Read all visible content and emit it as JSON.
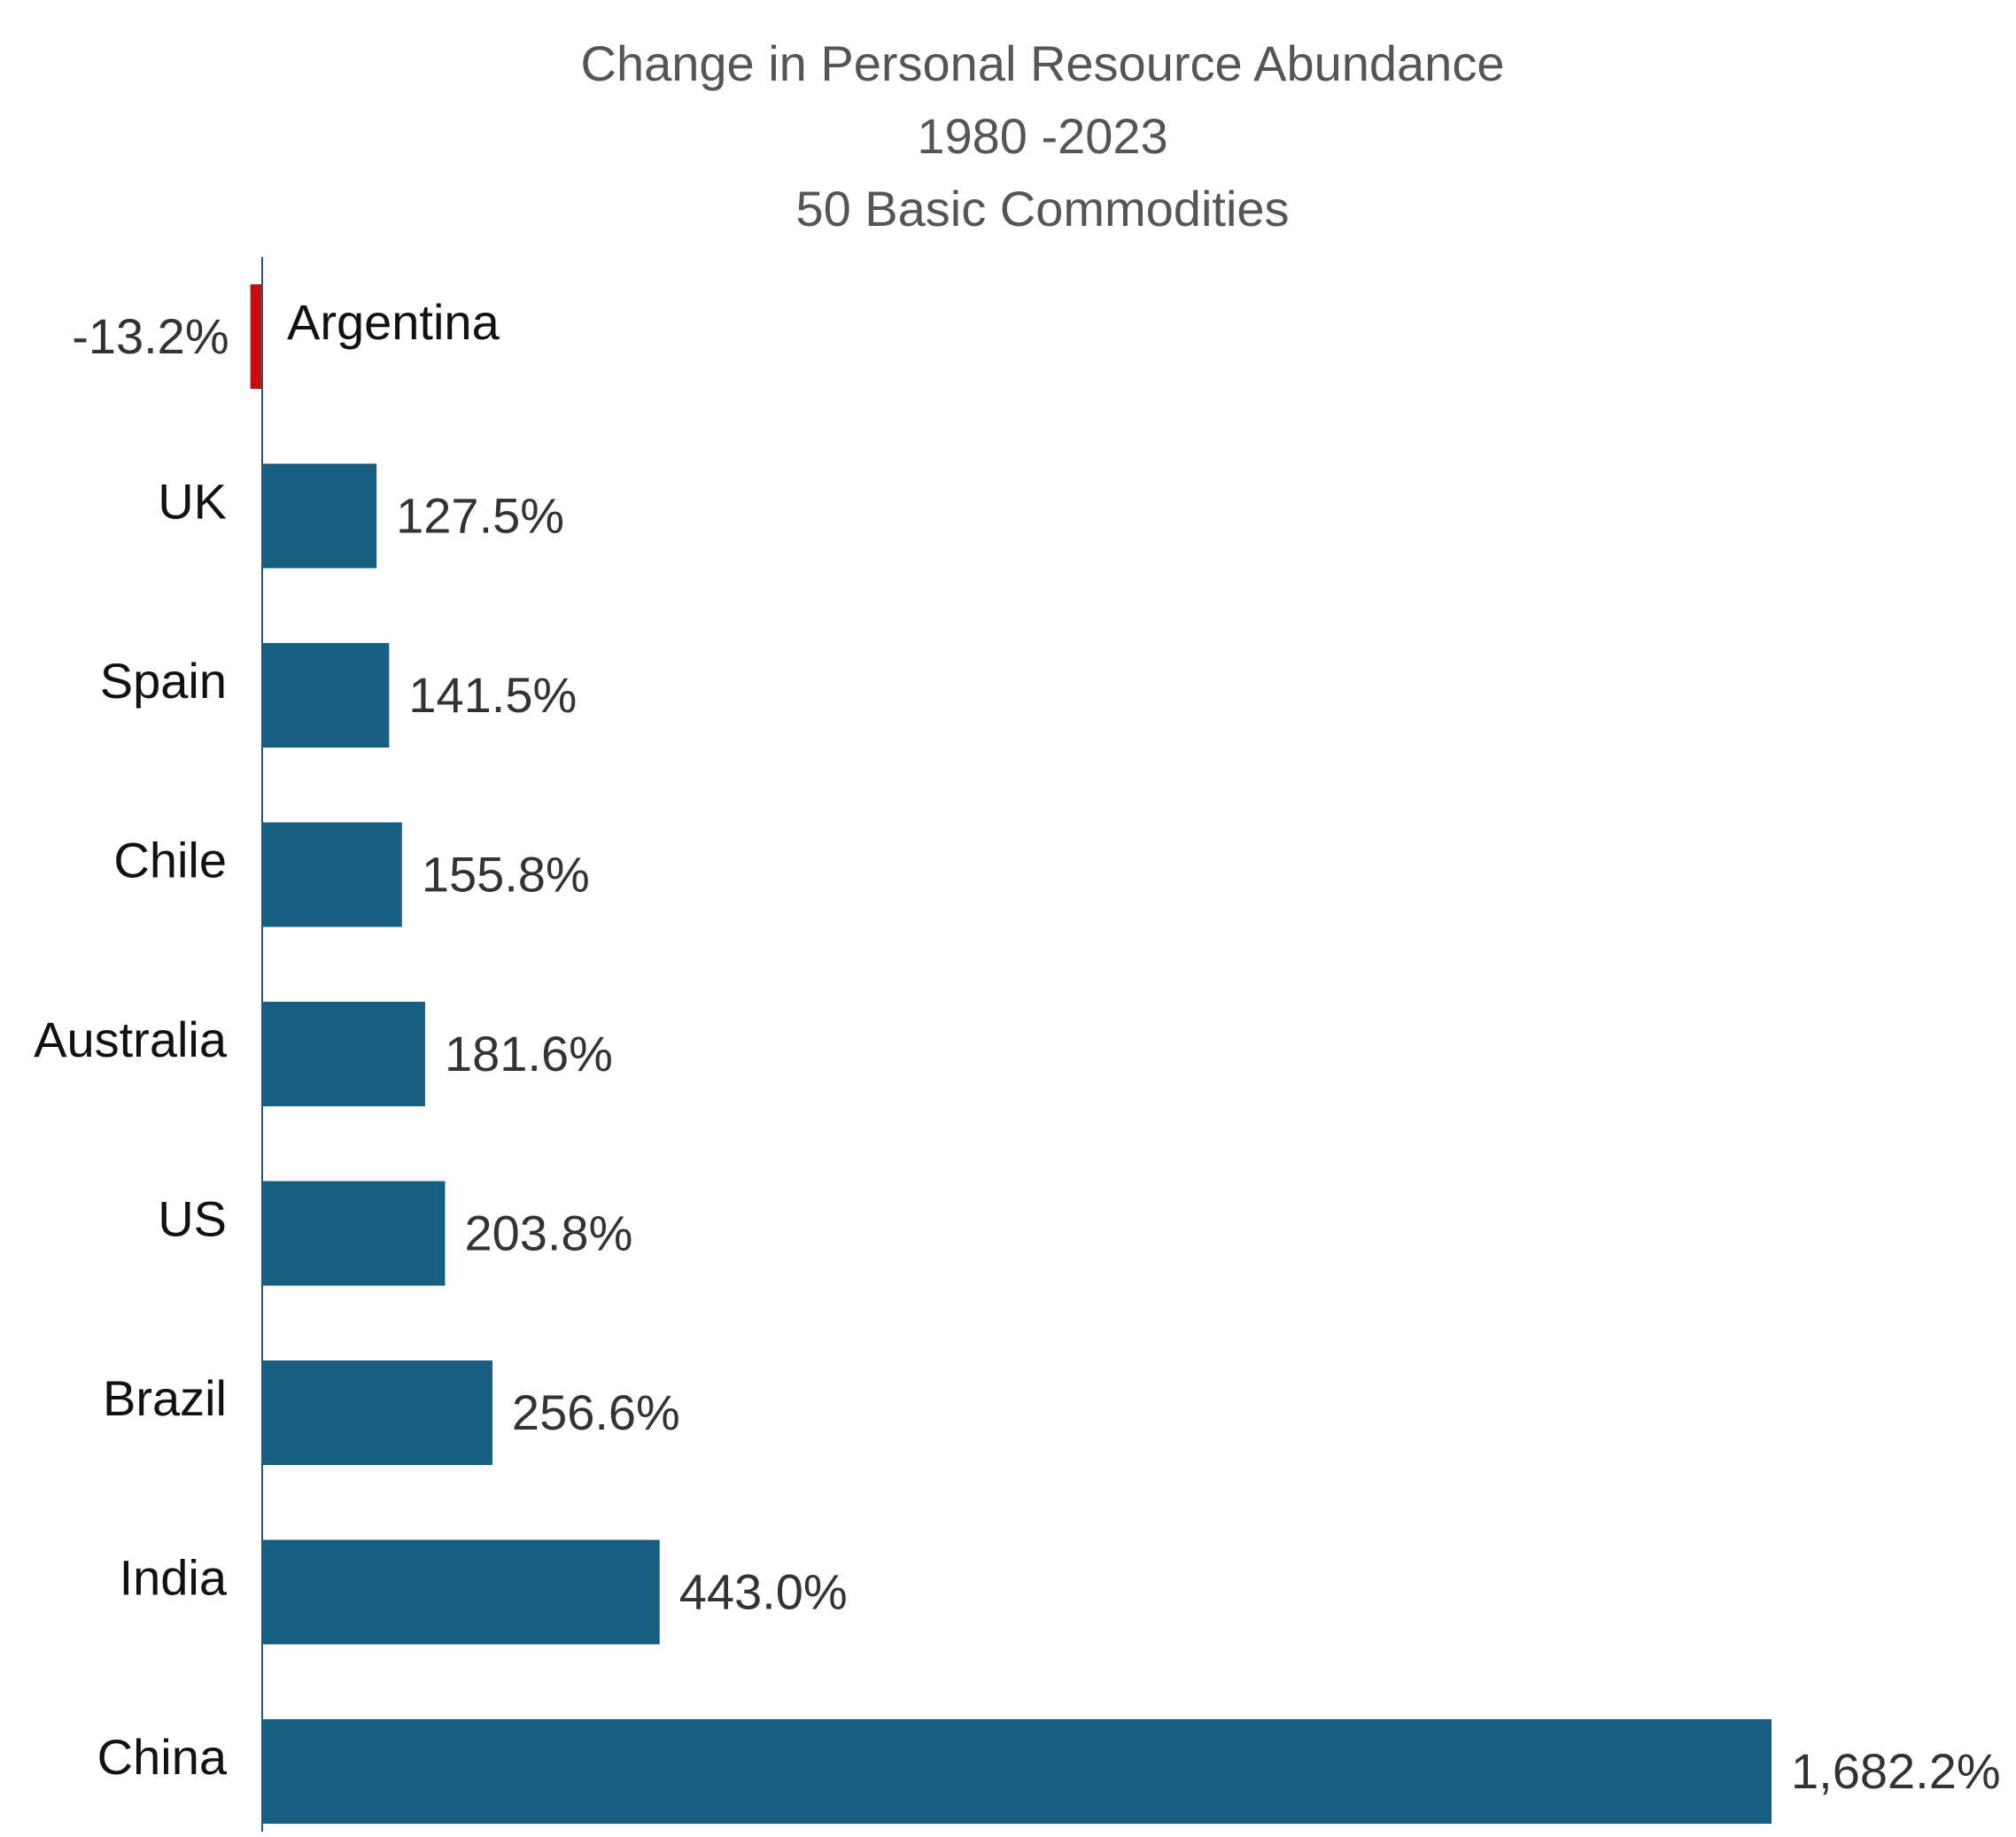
{
  "chart_data": {
    "type": "bar",
    "orientation": "horizontal",
    "title": [
      "Change in Personal Resource Abundance",
      "1980 -2023",
      "50 Basic Commodities"
    ],
    "categories": [
      "Argentina",
      "UK",
      "Spain",
      "Chile",
      "Australia",
      "US",
      "Brazil",
      "India",
      "China"
    ],
    "values": [
      -13.2,
      127.5,
      141.5,
      155.8,
      181.6,
      203.8,
      256.6,
      443.0,
      1682.2
    ],
    "value_labels": [
      "-13.2%",
      "127.5%",
      "141.5%",
      "155.8%",
      "181.6%",
      "203.8%",
      "256.6%",
      "443.0%",
      "1,682.2%"
    ],
    "xlabel": "",
    "ylabel": "",
    "xlim": [
      -13.2,
      1682.2
    ],
    "grid": false,
    "legend": "none",
    "colors": {
      "positive": "#175e80",
      "negative": "#c40d12",
      "axis": "#175e80"
    }
  }
}
